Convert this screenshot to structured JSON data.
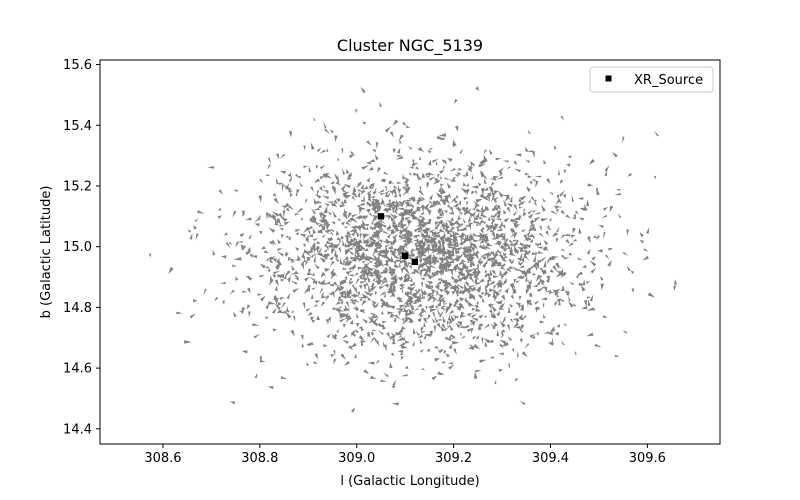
{
  "chart_data": {
    "type": "scatter",
    "title": "Cluster NGC_5139",
    "xlabel": "l (Galactic Longitude)",
    "ylabel": "b (Galactic Latitude)",
    "xlim": [
      308.47,
      309.75
    ],
    "ylim": [
      14.35,
      15.615
    ],
    "x_ticks": [
      308.6,
      308.8,
      309.0,
      309.2,
      309.4,
      309.6
    ],
    "x_tick_labels": [
      "308.6",
      "308.8",
      "309.0",
      "309.2",
      "309.4",
      "309.6"
    ],
    "y_ticks": [
      14.4,
      14.6,
      14.8,
      15.0,
      15.2,
      15.4,
      15.6
    ],
    "y_tick_labels": [
      "14.4",
      "14.6",
      "14.8",
      "15.0",
      "15.2",
      "15.4",
      "15.6"
    ],
    "grid": false,
    "legend_position": "upper right",
    "field_stars": {
      "color": "#808080",
      "count": 2600,
      "center": [
        309.13,
        14.97
      ],
      "spread": [
        0.17,
        0.16
      ],
      "x_range": [
        308.53,
        309.7
      ],
      "y_range": [
        14.41,
        15.55
      ]
    },
    "series": [
      {
        "name": "XR_Source",
        "marker": "square",
        "color": "#000000",
        "points": [
          {
            "x": 309.05,
            "y": 15.1
          },
          {
            "x": 309.1,
            "y": 14.97
          },
          {
            "x": 309.12,
            "y": 14.95
          }
        ]
      }
    ]
  }
}
